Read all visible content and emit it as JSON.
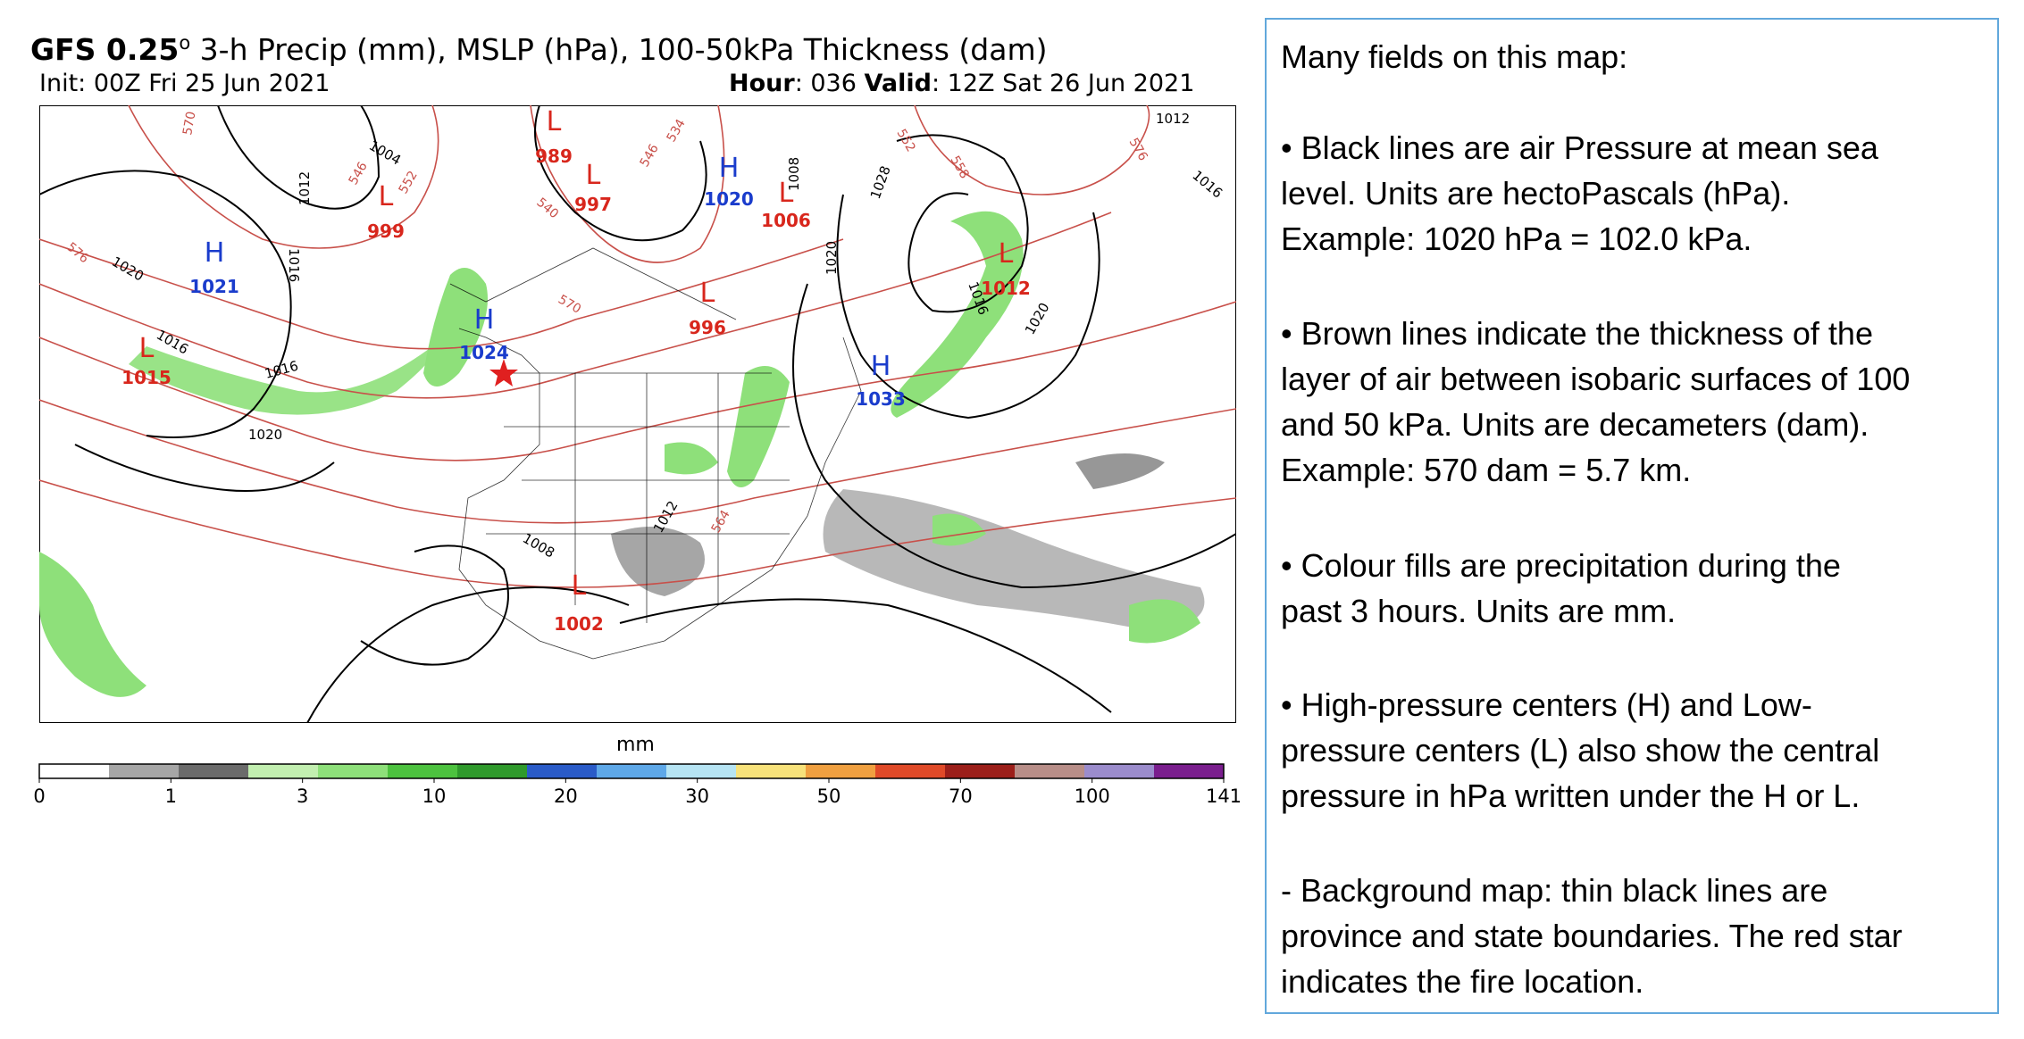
{
  "header": {
    "title_bold": "GFS 0.25",
    "title_sup": "o",
    "title_rest": " 3-h Precip (mm), MSLP (hPa), 100-50kPa Thickness (dam)",
    "init": "Init: 00Z Fri 25 Jun 2021",
    "hour_label": "Hour",
    "hour_value": ": 036",
    "valid_label": "Valid",
    "valid_value": ": 12Z Sat 26 Jun 2021"
  },
  "map": {
    "pressure_centers": [
      {
        "type": "H",
        "value": "1021"
      },
      {
        "type": "L",
        "value": "1015"
      },
      {
        "type": "L",
        "value": "999"
      },
      {
        "type": "L",
        "value": "989"
      },
      {
        "type": "L",
        "value": "997"
      },
      {
        "type": "H",
        "value": "1020"
      },
      {
        "type": "L",
        "value": "1006"
      },
      {
        "type": "L",
        "value": "996"
      },
      {
        "type": "H",
        "value": "1024"
      },
      {
        "type": "H",
        "value": "1033"
      },
      {
        "type": "L",
        "value": "1012"
      },
      {
        "type": "L",
        "value": "1002"
      }
    ],
    "isobar_labels": [
      "1020",
      "1016",
      "1020",
      "1012",
      "1016",
      "1004",
      "1028",
      "1020",
      "1016",
      "1020",
      "1012",
      "1016",
      "1008",
      "1012",
      "1016",
      "1008"
    ],
    "thickness_labels": [
      "570",
      "576",
      "546",
      "552",
      "540",
      "534",
      "546",
      "552",
      "558",
      "576",
      "564",
      "570"
    ],
    "star_color": "#e02020",
    "high_color": "#1a3ccc",
    "low_color": "#d8261c",
    "isobar_color": "#000000",
    "thickness_color": "#c8504a"
  },
  "colorbar": {
    "unit": "mm",
    "ticks": [
      "0",
      "1",
      "3",
      "10",
      "20",
      "30",
      "50",
      "70",
      "100",
      "141"
    ],
    "colors": [
      "#ffffff",
      "#a6a6a6",
      "#6b6b6b",
      "#c2efb0",
      "#8ee07a",
      "#4dc23f",
      "#2f9a2c",
      "#2a5bc8",
      "#5ea8e8",
      "#b6e4f3",
      "#f7e27a",
      "#f0a040",
      "#e04a28",
      "#9c1f1a",
      "#b88e88",
      "#9b8ccc",
      "#7a1e8e"
    ]
  },
  "textbox": {
    "p1": "Many fields on this map:",
    "p2": [
      "• Black lines are air Pressure at mean sea",
      "level.  Units are hectoPascals (hPa).",
      "Example: 1020 hPa = 102.0 kPa."
    ],
    "p3": [
      "• Brown lines indicate the thickness of the",
      "layer of air between isobaric surfaces of 100",
      "and 50 kPa.  Units are decameters (dam).",
      "Example: 570 dam = 5.7 km."
    ],
    "p4": [
      "• Colour fills are precipitation during the",
      "past 3 hours.  Units are mm."
    ],
    "p5": [
      "• High-pressure centers (H) and Low-",
      "pressure centers (L) also show the central",
      "pressure in hPa written under the H or L."
    ],
    "p6": [
      "- Background map: thin black lines are",
      "province and state boundaries.  The red star",
      "indicates the fire location."
    ]
  }
}
